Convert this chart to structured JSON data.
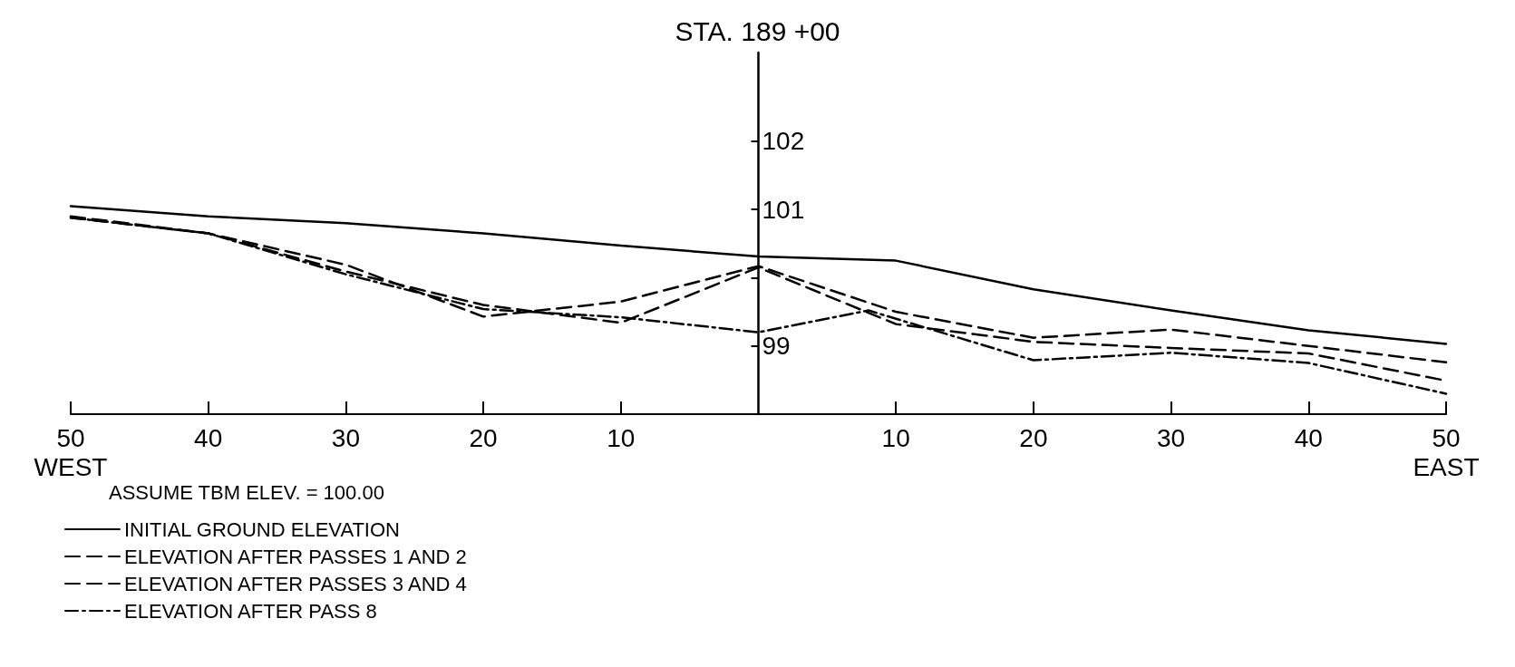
{
  "chart_data": {
    "type": "line",
    "title": "STA. 189 +00",
    "annotations": [
      "ASSUME TBM ELEV. = 100.00"
    ],
    "x": [
      -50,
      -40,
      -30,
      -20,
      -10,
      0,
      10,
      20,
      30,
      40,
      50
    ],
    "series": [
      {
        "name": "INITIAL GROUND ELEVATION",
        "color": "#000000",
        "line_style": "solid",
        "values": [
          101.05,
          100.9,
          100.8,
          100.65,
          100.47,
          100.31,
          100.25,
          99.83,
          99.52,
          99.23,
          99.03
        ]
      },
      {
        "name": "ELEVATION AFTER PASSES 1 AND 2",
        "color": "#000000",
        "line_style": "dashed",
        "values": [
          100.88,
          100.65,
          100.19,
          99.43,
          99.65,
          100.17,
          99.5,
          99.12,
          99.24,
          99.0,
          98.76
        ]
      },
      {
        "name": "ELEVATION AFTER PASSES 3 AND 4",
        "color": "#000000",
        "line_style": "dashed",
        "values": [
          100.9,
          100.65,
          100.09,
          99.6,
          99.34,
          100.15,
          99.32,
          99.06,
          98.97,
          98.89,
          98.49
        ]
      },
      {
        "name": "ELEVATION AFTER PASS 8",
        "color": "#000000",
        "line_style": "dashdot",
        "x": [
          -50,
          -40,
          -30,
          -20,
          -10,
          0,
          8,
          20,
          30,
          40,
          50
        ],
        "values": [
          100.88,
          100.65,
          100.05,
          99.54,
          99.42,
          99.2,
          99.52,
          98.79,
          98.9,
          98.75,
          98.3
        ]
      }
    ],
    "xlim": [
      -50,
      50
    ],
    "xticks": [
      {
        "value": -50,
        "label": "50\nWEST"
      },
      {
        "value": -40,
        "label": "40"
      },
      {
        "value": -30,
        "label": "30"
      },
      {
        "value": -20,
        "label": "20"
      },
      {
        "value": -10,
        "label": "10"
      },
      10,
      20,
      30,
      40,
      {
        "value": 50,
        "label": "50\nEAST"
      }
    ],
    "ylim": [
      98,
      103.3
    ],
    "yticks": [
      99,
      {
        "value": 100,
        "label": null
      },
      101,
      102
    ],
    "grid": false,
    "legend": "bottom left",
    "marker": "none"
  }
}
